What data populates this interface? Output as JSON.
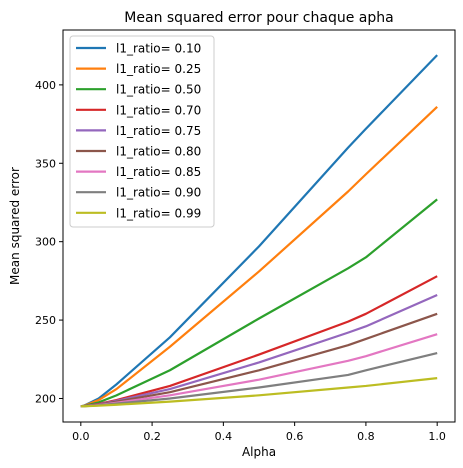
{
  "chart_data": {
    "type": "line",
    "title": "Mean squared error pour chaque apha",
    "xlabel": "Alpha",
    "ylabel": "Mean squared error",
    "xlim": [
      -0.05,
      1.05
    ],
    "ylim": [
      185,
      435
    ],
    "xticks": [
      0.0,
      0.2,
      0.4,
      0.6,
      0.8,
      1.0
    ],
    "xtick_labels": [
      "0.0",
      "0.2",
      "0.4",
      "0.6",
      "0.8",
      "1.0"
    ],
    "yticks": [
      200,
      250,
      300,
      350,
      400
    ],
    "ytick_labels": [
      "200",
      "250",
      "300",
      "350",
      "400"
    ],
    "grid": false,
    "legend_position": "top-left",
    "x": [
      0.0,
      0.01,
      0.05,
      0.1,
      0.25,
      0.5,
      0.75,
      0.8,
      1.0
    ],
    "series": [
      {
        "name": "l1_ratio= 0.10",
        "color": "#1f77b4",
        "values": [
          195,
          195.5,
          200,
          209,
          239,
          297,
          360,
          372,
          419
        ]
      },
      {
        "name": "l1_ratio= 0.25",
        "color": "#ff7f0e",
        "values": [
          195,
          195.4,
          199,
          206,
          233,
          281,
          332,
          343,
          386
        ]
      },
      {
        "name": "l1_ratio= 0.50",
        "color": "#2ca02c",
        "values": [
          195,
          195.3,
          197.5,
          202,
          218,
          251,
          283,
          290,
          327
        ]
      },
      {
        "name": "l1_ratio= 0.70",
        "color": "#d62728",
        "values": [
          195,
          195.2,
          196.5,
          199,
          208,
          228,
          249,
          254,
          278
        ]
      },
      {
        "name": "l1_ratio= 0.75",
        "color": "#9467bd",
        "values": [
          195,
          195.2,
          196.3,
          198.5,
          206,
          223,
          242,
          246,
          266
        ]
      },
      {
        "name": "l1_ratio= 0.80",
        "color": "#8c564b",
        "values": [
          195,
          195.1,
          196,
          198,
          204,
          218,
          234,
          238,
          254
        ]
      },
      {
        "name": "l1_ratio= 0.85",
        "color": "#e377c2",
        "values": [
          195,
          195.1,
          195.8,
          197.3,
          202,
          212,
          224,
          227,
          241
        ]
      },
      {
        "name": "l1_ratio= 0.90",
        "color": "#7f7f7f",
        "values": [
          195,
          195.1,
          195.6,
          196.7,
          200,
          207,
          215,
          218,
          229
        ]
      },
      {
        "name": "l1_ratio= 0.99",
        "color": "#bcbd22",
        "values": [
          195,
          195.05,
          195.4,
          196,
          198,
          202,
          207,
          208,
          213
        ]
      }
    ]
  }
}
